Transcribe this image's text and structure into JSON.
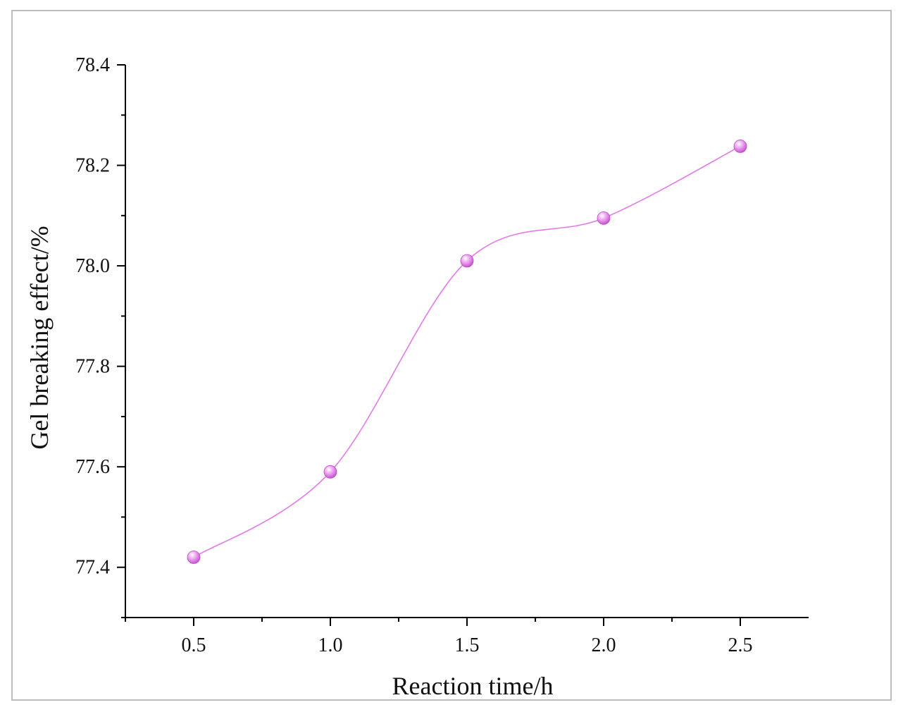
{
  "chart_data": {
    "type": "line",
    "title": "",
    "xlabel": "Reaction time/h",
    "ylabel": "Gel breaking effect/%",
    "xlim": [
      0.25,
      2.75
    ],
    "ylim": [
      77.3,
      78.4
    ],
    "xticks": [
      0.5,
      1.0,
      1.5,
      2.0,
      2.5
    ],
    "xtick_labels": [
      "0.5",
      "1.0",
      "1.5",
      "2.0",
      "2.5"
    ],
    "yticks": [
      77.4,
      77.6,
      77.8,
      78.0,
      78.2,
      78.4
    ],
    "ytick_labels": [
      "77.4",
      "77.6",
      "77.8",
      "78.0",
      "78.2",
      "78.4"
    ],
    "grid": false,
    "legend": "none",
    "smooth": true,
    "color": "#e27ae8",
    "series": [
      {
        "x": [
          0.5,
          1.0,
          1.5,
          2.0,
          2.5
        ],
        "values": [
          77.42,
          77.59,
          78.01,
          78.095,
          78.238
        ]
      }
    ]
  }
}
